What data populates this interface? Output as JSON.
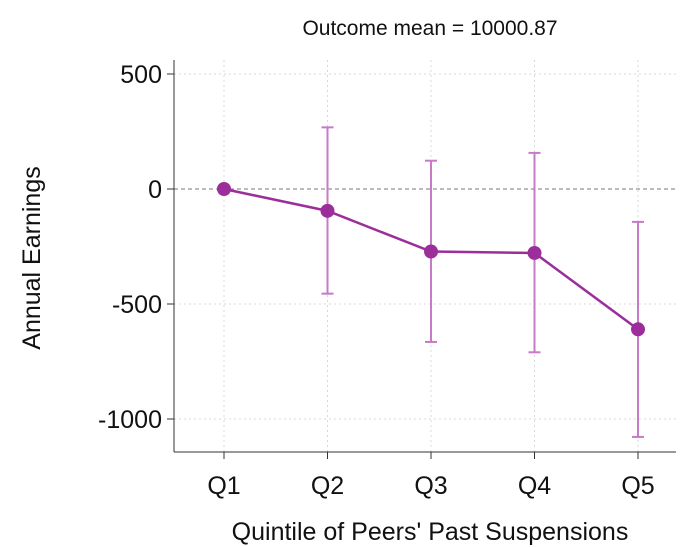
{
  "chart_data": {
    "type": "line",
    "title": "Outcome mean = 10000.87",
    "xlabel": "Quintile of Peers' Past Suspensions",
    "ylabel": "Annual Earnings",
    "categories": [
      "Q1",
      "Q2",
      "Q3",
      "Q4",
      "Q5"
    ],
    "series": [
      {
        "values": [
          0,
          -95,
          -272,
          -278,
          -610
        ],
        "ci_low": [
          0,
          -455,
          -665,
          -710,
          -1078
        ],
        "ci_high": [
          0,
          268,
          123,
          157,
          -143
        ]
      }
    ],
    "yticks": [
      500,
      0,
      -500,
      -1000
    ],
    "ylim": [
      -1150,
      520
    ],
    "reference_line": 0,
    "grid": true,
    "color": "#9b2e9b",
    "ci_color": "#c77ac7"
  }
}
